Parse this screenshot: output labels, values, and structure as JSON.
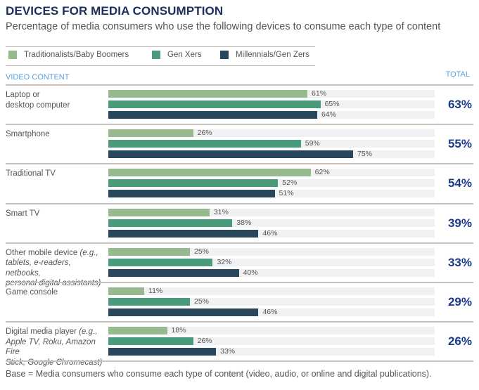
{
  "chart_data": {
    "type": "bar",
    "orientation": "horizontal",
    "title": "DEVICES FOR MEDIA CONSUMPTION",
    "subtitle": "Percentage of media consumers who use the following devices to consume each type of content",
    "section_label": "VIDEO CONTENT",
    "total_label": "TOTAL",
    "xlim": [
      0,
      100
    ],
    "value_suffix": "%",
    "legend_placement": "top-left",
    "series": [
      {
        "name": "Traditionalists/Baby Boomers",
        "color": "#97b98e",
        "values": [
          61,
          26,
          62,
          31,
          25,
          11,
          18
        ]
      },
      {
        "name": "Gen Xers",
        "color": "#4a9a7c",
        "values": [
          65,
          59,
          52,
          38,
          32,
          25,
          26
        ]
      },
      {
        "name": "Millennials/Gen Zers",
        "color": "#27475d",
        "values": [
          64,
          75,
          51,
          46,
          40,
          46,
          33
        ]
      }
    ],
    "categories": [
      {
        "name": "Laptop or desktop computer",
        "lines": [
          {
            "text": "Laptop or",
            "italic": ""
          },
          {
            "text": "desktop computer",
            "italic": ""
          }
        ],
        "total": "63%"
      },
      {
        "name": "Smartphone",
        "lines": [
          {
            "text": "Smartphone",
            "italic": ""
          }
        ],
        "total": "55%"
      },
      {
        "name": "Traditional TV",
        "lines": [
          {
            "text": "Traditional TV",
            "italic": ""
          }
        ],
        "total": "54%"
      },
      {
        "name": "Smart TV",
        "lines": [
          {
            "text": "Smart TV",
            "italic": ""
          }
        ],
        "total": "39%"
      },
      {
        "name": "Other mobile device",
        "lines": [
          {
            "text": "Other mobile device ",
            "italic": "(e.g.,"
          },
          {
            "text": "",
            "italic": "tablets, e-readers, netbooks,"
          },
          {
            "text": "",
            "italic": "personal digital assistants)"
          }
        ],
        "total": "33%"
      },
      {
        "name": "Game console",
        "lines": [
          {
            "text": "Game console",
            "italic": ""
          }
        ],
        "total": "29%"
      },
      {
        "name": "Digital media player",
        "lines": [
          {
            "text": "Digital media player ",
            "italic": "(e.g.,"
          },
          {
            "text": "",
            "italic": "Apple TV, Roku, Amazon Fire"
          },
          {
            "text": "",
            "italic": "Stick, Google Chromecast)"
          }
        ],
        "total": "26%"
      }
    ],
    "footnote": "Base = Media consumers who consume each type of content (video, audio, or online and digital publications)."
  }
}
